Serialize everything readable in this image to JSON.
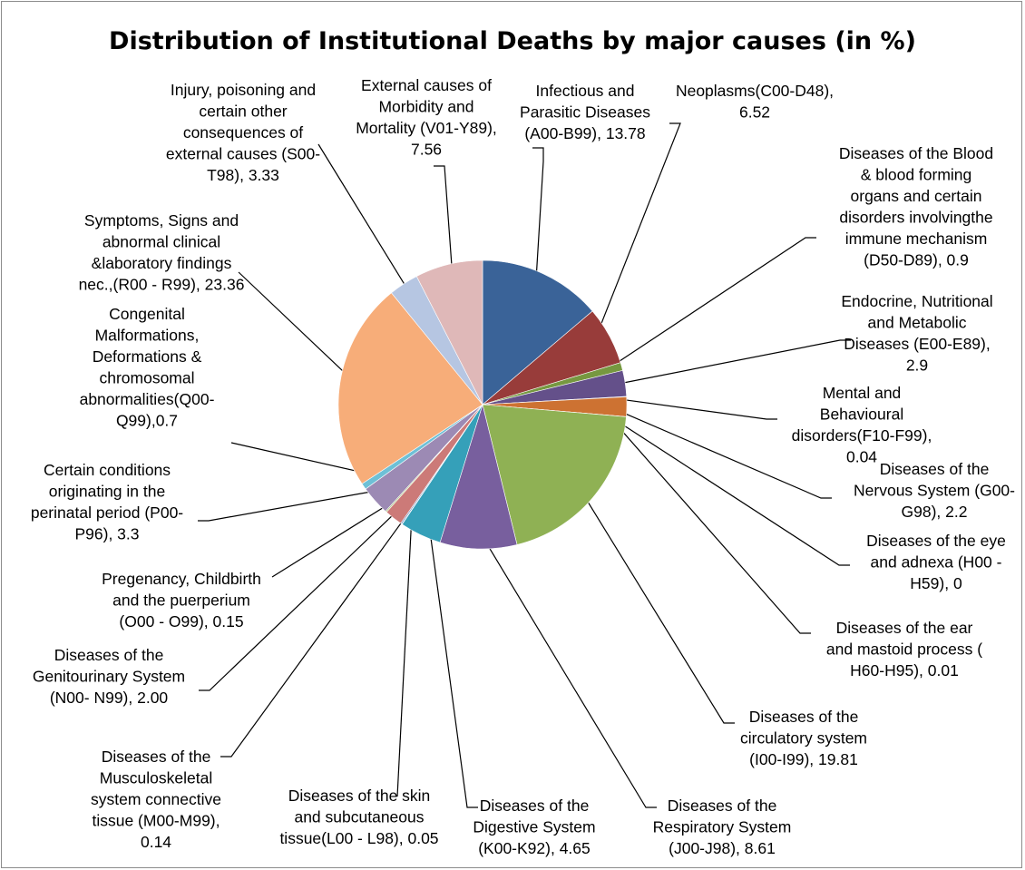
{
  "chart_data": {
    "type": "pie",
    "title": "Distribution of Institutional Deaths by major causes (in %)",
    "slices": [
      {
        "label": [
          "Infectious and",
          "Parasitic Diseases",
          "(A00-B99), 13.78"
        ],
        "value": 13.78,
        "color": "#3a6398"
      },
      {
        "label": [
          "Neoplasms(C00-D48),",
          "6.52"
        ],
        "value": 6.52,
        "color": "#983c3a"
      },
      {
        "label": [
          "Diseases of the Blood",
          "& blood forming",
          "organs and certain",
          "disorders involvingthe",
          "immune mechanism",
          "(D50-D89), 0.9"
        ],
        "value": 0.9,
        "color": "#769840"
      },
      {
        "label": [
          "Endocrine, Nutritional",
          "and Metabolic",
          "Diseases (E00-E89),",
          "2.9"
        ],
        "value": 2.9,
        "color": "#64508a"
      },
      {
        "label": [
          "Mental and",
          "Behavioural",
          "disorders(F10-F99),",
          "0.04"
        ],
        "value": 0.04,
        "color": "#3890a8"
      },
      {
        "label": [
          "Diseases of the",
          "Nervous System (G00-",
          "G98), 2.2"
        ],
        "value": 2.2,
        "color": "#cd7232"
      },
      {
        "label": [
          "Diseases of the eye",
          "and adnexa (H00 -",
          "H59), 0"
        ],
        "value": 0,
        "color": "#3c6a9e"
      },
      {
        "label": [
          "Diseases of the ear",
          "and mastoid process (",
          "H60-H95), 0.01"
        ],
        "value": 0.01,
        "color": "#a24442"
      },
      {
        "label": [
          "Diseases of the",
          "circulatory system",
          "(I00-I99), 19.81"
        ],
        "value": 19.81,
        "color": "#8fb154"
      },
      {
        "label": [
          "Diseases of the",
          "Respiratory System",
          "(J00-J98), 8.61"
        ],
        "value": 8.61,
        "color": "#785f9e"
      },
      {
        "label": [
          "Diseases of the",
          "Digestive System",
          "(K00-K92), 4.65"
        ],
        "value": 4.65,
        "color": "#35a0b9"
      },
      {
        "label": [
          "Diseases of the skin",
          "and subcutaneous",
          "tissue(L00 - L98), 0.05"
        ],
        "value": 0.05,
        "color": "#e2833c"
      },
      {
        "label": [
          "Diseases of the",
          "Musculoskeletal",
          "system connective",
          "tissue (M00-M99),",
          "0.14"
        ],
        "value": 0.14,
        "color": "#5b7fb8"
      },
      {
        "label": [
          "Diseases of the",
          "Genitourinary System",
          "(N00- N99), 2.00"
        ],
        "value": 2.0,
        "color": "#cc7a78"
      },
      {
        "label": [
          "Pregenancy, Childbirth",
          "and the puerperium",
          "(O00 - O99), 0.15"
        ],
        "value": 0.15,
        "color": "#a9c37c"
      },
      {
        "label": [
          "Certain conditions",
          "originating in the",
          "perinatal period (P00-",
          "P96), 3.3"
        ],
        "value": 3.3,
        "color": "#9c8ab4"
      },
      {
        "label": [
          "Congenital",
          "Malformations,",
          "Deformations &",
          "chromosomal",
          "abnormalities(Q00-",
          "Q99),0.7"
        ],
        "value": 0.7,
        "color": "#6ec0d6"
      },
      {
        "label": [
          "Symptoms, Signs and",
          "abnormal clinical",
          "&laboratory findings",
          "nec.,(R00 - R99), 23.36"
        ],
        "value": 23.36,
        "color": "#f7ad79"
      },
      {
        "label": [
          "Injury, poisoning and",
          "certain other",
          "consequences of",
          "external causes (S00-",
          "T98), 3.33"
        ],
        "value": 3.33,
        "color": "#b6c6e2"
      },
      {
        "label": [
          "External causes of",
          "Morbidity and",
          "Mortality (V01-Y89),",
          "7.56"
        ],
        "value": 7.56,
        "color": "#dfb8b8"
      }
    ]
  }
}
